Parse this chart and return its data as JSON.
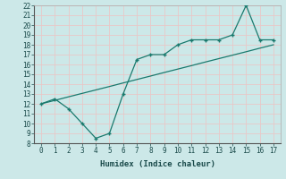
{
  "xlabel": "Humidex (Indice chaleur)",
  "x_data": [
    0,
    1,
    2,
    3,
    4,
    5,
    6,
    7,
    8,
    9,
    10,
    11,
    12,
    13,
    14,
    15,
    16,
    17
  ],
  "y_jagged": [
    12,
    12.5,
    11.5,
    10,
    8.5,
    9,
    13,
    16.5,
    17,
    17,
    18,
    18.5,
    18.5,
    18.5,
    19,
    22,
    18.5,
    18.5
  ],
  "y_trend": [
    12,
    12.35,
    12.71,
    13.06,
    13.41,
    13.76,
    14.12,
    14.47,
    14.82,
    15.18,
    15.53,
    15.88,
    16.24,
    16.59,
    16.94,
    17.29,
    17.65,
    18.0
  ],
  "line_color": "#1a7a6e",
  "bg_color": "#cce8e8",
  "grid_color": "#e8c8c8",
  "ylim": [
    8,
    22
  ],
  "xlim": [
    -0.5,
    17.5
  ],
  "yticks": [
    8,
    9,
    10,
    11,
    12,
    13,
    14,
    15,
    16,
    17,
    18,
    19,
    20,
    21,
    22
  ],
  "xticks": [
    0,
    1,
    2,
    3,
    4,
    5,
    6,
    7,
    8,
    9,
    10,
    11,
    12,
    13,
    14,
    15,
    16,
    17
  ],
  "tick_fontsize": 5.5,
  "xlabel_fontsize": 6.5
}
